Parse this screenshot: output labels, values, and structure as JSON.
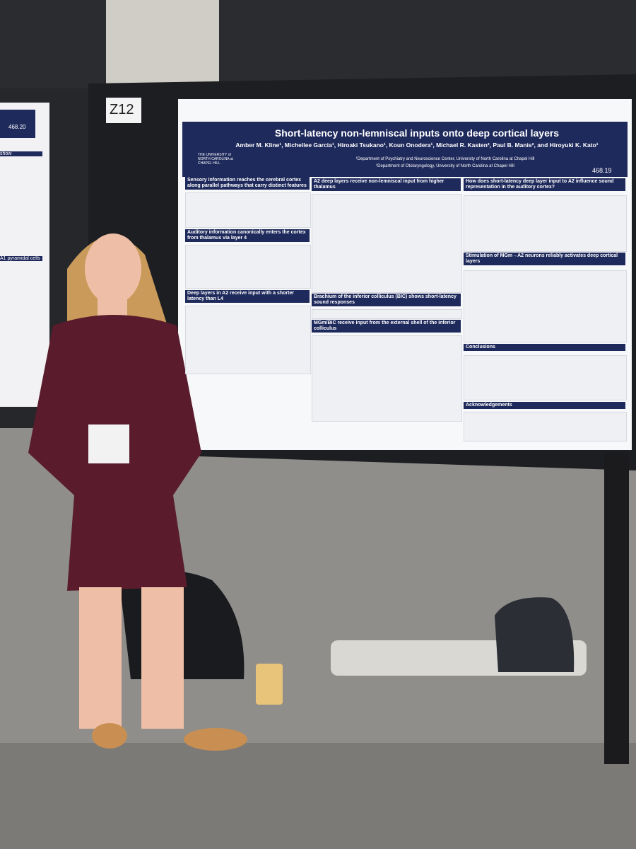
{
  "board": {
    "number": "Z12"
  },
  "left_poster": {
    "id": "468.20",
    "fragments": [
      "show",
      "A1 pyramidal cells"
    ]
  },
  "poster": {
    "title": "Short-latency non-lemniscal inputs onto deep cortical layers",
    "authors": "Amber M. Kline¹, Michellee Garcia¹, Hiroaki Tsukano¹, Koun Onodera¹, Michael R. Kasten², Paul B. Manis², and Hiroyuki K. Kato¹",
    "university": "THE UNIVERSITY of NORTH CAROLINA at CHAPEL HILL",
    "affiliations": [
      "¹Department of Psychiatry and Neuroscience Center, University of North Carolina at Chapel Hill",
      "²Department of Otolaryngology, University of North Carolina at Chapel Hill"
    ],
    "id": "468.19",
    "sections": [
      "Sensory information reaches the cerebral cortex along parallel pathways that carry distinct features",
      "Auditory information canonically enters the cortex from thalamus via layer 4",
      "Deep layers in A2 receive input with a shorter latency than L4",
      "A2 deep layers receive non-lemniscal input from higher thalamus",
      "Brachium of the inferior colliculus (BIC) shows short-latency sound responses",
      "MGm/BIC receive input from the external shell of the inferior colliculus",
      "How does short-latency deep layer input to A2 influence sound representation in the auditory cortex?",
      "Stimulation of MGm→A2 neurons reliably activates deep cortical layers",
      "Conclusions",
      "Acknowledgements"
    ]
  }
}
